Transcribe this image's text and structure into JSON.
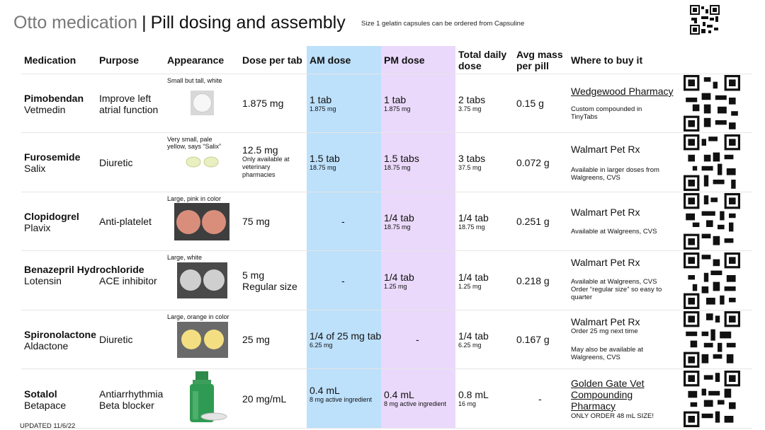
{
  "title": {
    "brand": "Otto medication",
    "separator": "|",
    "subtitle": "Pill dosing and assembly"
  },
  "size_note": "Size 1 gelatin capsules can be ordered from Capsuline",
  "headers": {
    "medication": "Medication",
    "purpose": "Purpose",
    "appearance": "Appearance",
    "dose_per_tab": "Dose per tab",
    "am_dose": "AM dose",
    "pm_dose": "PM dose",
    "total_daily_1": "Total daily",
    "total_daily_2": "dose",
    "avg_mass_1": "Avg mass",
    "avg_mass_2": "per pill",
    "where": "Where to buy it"
  },
  "rows": [
    {
      "name": "Pimobendan",
      "brand": "Vetmedin",
      "purpose": "Improve left atrial function",
      "appearance": "Small but tall, white",
      "dose": "1.875 mg",
      "dose_note": "",
      "am": "1 tab",
      "am_sub": "1.875 mg",
      "pm": "1 tab",
      "pm_sub": "1.875 mg",
      "total": "2 tabs",
      "total_sub": "3.75 mg",
      "mass": "0.15 g",
      "where_link": "Wedgewood Pharmacy",
      "where_note": "Custom compounded in TinyTabs"
    },
    {
      "name": "Furosemide",
      "brand": "Salix",
      "purpose": "Diuretic",
      "appearance": "Very small, pale yellow, says “Salix”",
      "dose": "12.5 mg",
      "dose_note": "Only available at veterinary pharmacies",
      "am": "1.5 tab",
      "am_sub": "18.75 mg",
      "pm": "1.5 tabs",
      "pm_sub": "18.75 mg",
      "total": "3 tabs",
      "total_sub": "37.5 mg",
      "mass": "0.072 g",
      "where_link": "Walmart Pet Rx",
      "where_note": "Available in larger doses from Walgreens, CVS"
    },
    {
      "name": "Clopidogrel",
      "brand": "Plavix",
      "purpose": "Anti-platelet",
      "appearance": "Large, pink in color",
      "dose": "75 mg",
      "dose_note": "",
      "am": "-",
      "am_sub": "",
      "pm": "1/4 tab",
      "pm_sub": "18.75 mg",
      "total": "1/4 tab",
      "total_sub": "18.75 mg",
      "mass": "0.251 g",
      "where_link": "Walmart Pet Rx",
      "where_note": "Available at Walgreens, CVS"
    },
    {
      "name": "Benazepril Hydrochloride",
      "brand": "Lotensin",
      "purpose": "ACE inhibitor",
      "appearance": "Large, white",
      "dose": "5 mg",
      "dose_note": "Regular size",
      "am": "-",
      "am_sub": "",
      "pm": "1/4 tab",
      "pm_sub": "1.25 mg",
      "total": "1/4 tab",
      "total_sub": "1.25 mg",
      "mass": "0.218 g",
      "where_link": "Walmart Pet Rx",
      "where_note": "Available at Walgreens, CVS Order “regular size” so easy to quarter"
    },
    {
      "name": "Spironolactone",
      "brand": "Aldactone",
      "purpose": "Diuretic",
      "appearance": "Large, orange in color",
      "dose": "25 mg",
      "dose_note": "",
      "am": "1/4 of 25 mg tab",
      "am_sub": "6.25 mg",
      "pm": "-",
      "pm_sub": "",
      "total": "1/4 tab",
      "total_sub": "6.25 mg",
      "mass": "0.167 g",
      "where_link": "Walmart Pet Rx",
      "where_extra": "Order 25 mg next time",
      "where_note": "May also be available at Walgreens, CVS"
    },
    {
      "name": "Sotalol",
      "brand": "Betapace",
      "purpose": "Antiarrhythmia Beta blocker",
      "appearance": "",
      "dose": "20 mg/mL",
      "dose_note": "",
      "am": "0.4 mL",
      "am_sub": "8 mg active ingredient",
      "pm": "0.4 mL",
      "pm_sub": "8 mg active ingredient",
      "total": "0.8 mL",
      "total_sub": "16 mg",
      "mass": "-",
      "where_link": "Golden Gate Vet Compounding Pharmacy",
      "where_note": "ONLY ORDER 48 mL SIZE!"
    }
  ],
  "updated": "UPDATED 11/6/22",
  "colors": {
    "am_band": "#bde0fb",
    "pm_band": "#ead9fb"
  }
}
